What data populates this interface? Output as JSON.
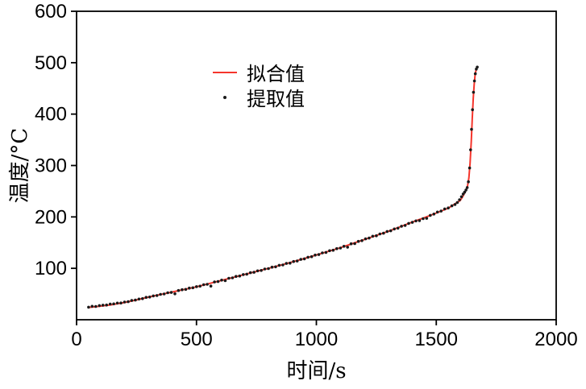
{
  "figure": {
    "background": "#ffffff",
    "axis_color": "#000000"
  },
  "chart_data": {
    "type": "line+scatter",
    "xlabel": "时间/s",
    "ylabel": "温度/°C",
    "xlim": [
      0,
      2000
    ],
    "ylim": [
      0,
      600
    ],
    "x_ticks": [
      0,
      500,
      1000,
      1500,
      2000
    ],
    "y_ticks": [
      100,
      200,
      300,
      400,
      500,
      600
    ],
    "grid": false,
    "legend": {
      "position": "upper-center",
      "entries": [
        {
          "name": "拟合值",
          "type": "line",
          "color": "#f5352c"
        },
        {
          "name": "提取值",
          "type": "scatter",
          "color": "#1a1a1a"
        }
      ]
    },
    "series": [
      {
        "name": "拟合值",
        "type": "line",
        "color": "#f5352c",
        "points": [
          [
            50,
            24
          ],
          [
            100,
            26.5
          ],
          [
            150,
            29.5
          ],
          [
            200,
            33.5
          ],
          [
            250,
            38.5
          ],
          [
            300,
            44
          ],
          [
            350,
            49
          ],
          [
            400,
            54
          ],
          [
            450,
            59
          ],
          [
            500,
            64
          ],
          [
            550,
            70
          ],
          [
            600,
            76
          ],
          [
            650,
            82
          ],
          [
            700,
            88
          ],
          [
            750,
            94
          ],
          [
            800,
            100
          ],
          [
            850,
            106
          ],
          [
            900,
            112.5
          ],
          [
            950,
            119
          ],
          [
            1000,
            126
          ],
          [
            1050,
            133
          ],
          [
            1100,
            140
          ],
          [
            1150,
            148
          ],
          [
            1200,
            156
          ],
          [
            1250,
            164
          ],
          [
            1300,
            172
          ],
          [
            1350,
            181
          ],
          [
            1400,
            190
          ],
          [
            1450,
            198.5
          ],
          [
            1500,
            207.5
          ],
          [
            1550,
            217
          ],
          [
            1600,
            232
          ],
          [
            1612,
            241
          ],
          [
            1622,
            250
          ],
          [
            1630,
            259
          ],
          [
            1636,
            276
          ],
          [
            1641,
            305
          ],
          [
            1646,
            348
          ],
          [
            1650,
            392
          ],
          [
            1654,
            430
          ],
          [
            1658,
            458
          ],
          [
            1662,
            476
          ],
          [
            1666,
            486
          ],
          [
            1670,
            492
          ]
        ]
      },
      {
        "name": "提取值",
        "type": "scatter",
        "color": "#1a1a1a",
        "points": [
          [
            50,
            24.5
          ],
          [
            65,
            26.2
          ],
          [
            80,
            25.8
          ],
          [
            95,
            27.5
          ],
          [
            110,
            28.3
          ],
          [
            125,
            28.7
          ],
          [
            140,
            30.5
          ],
          [
            155,
            30.8
          ],
          [
            170,
            32.4
          ],
          [
            185,
            32.6
          ],
          [
            200,
            34.5
          ],
          [
            215,
            35.1
          ],
          [
            230,
            37.4
          ],
          [
            245,
            38.2
          ],
          [
            260,
            40.3
          ],
          [
            275,
            41.1
          ],
          [
            290,
            43.5
          ],
          [
            305,
            44.2
          ],
          [
            320,
            46.3
          ],
          [
            335,
            47.1
          ],
          [
            350,
            49.4
          ],
          [
            365,
            50.2
          ],
          [
            380,
            52.5
          ],
          [
            395,
            53.1
          ],
          [
            410,
            50.5
          ],
          [
            425,
            56.9
          ],
          [
            440,
            58.4
          ],
          [
            455,
            59.1
          ],
          [
            470,
            61.5
          ],
          [
            485,
            62.2
          ],
          [
            500,
            64.4
          ],
          [
            515,
            65.3
          ],
          [
            530,
            68.1
          ],
          [
            545,
            69.0
          ],
          [
            560,
            65.5
          ],
          [
            575,
            73.4
          ],
          [
            590,
            74.3
          ],
          [
            605,
            77.1
          ],
          [
            620,
            76.0
          ],
          [
            635,
            80.7
          ],
          [
            650,
            81.4
          ],
          [
            665,
            84.3
          ],
          [
            680,
            85.0
          ],
          [
            695,
            87.9
          ],
          [
            710,
            88.6
          ],
          [
            725,
            91.5
          ],
          [
            740,
            92.2
          ],
          [
            755,
            95.1
          ],
          [
            770,
            95.8
          ],
          [
            785,
            98.7
          ],
          [
            800,
            99.4
          ],
          [
            815,
            102.3
          ],
          [
            830,
            103.0
          ],
          [
            845,
            105.9
          ],
          [
            860,
            106.6
          ],
          [
            875,
            109.5
          ],
          [
            890,
            110.2
          ],
          [
            905,
            113.2
          ],
          [
            920,
            114.2
          ],
          [
            935,
            117.4
          ],
          [
            950,
            118.4
          ],
          [
            965,
            121.6
          ],
          [
            980,
            122.6
          ],
          [
            995,
            125.8
          ],
          [
            1010,
            126.8
          ],
          [
            1025,
            130.0
          ],
          [
            1040,
            131.0
          ],
          [
            1055,
            134.2
          ],
          [
            1070,
            135.2
          ],
          [
            1085,
            138.4
          ],
          [
            1100,
            139.4
          ],
          [
            1115,
            142.9
          ],
          [
            1130,
            141.2
          ],
          [
            1145,
            147.7
          ],
          [
            1160,
            148.0
          ],
          [
            1175,
            152.5
          ],
          [
            1190,
            153.8
          ],
          [
            1205,
            157.3
          ],
          [
            1220,
            158.8
          ],
          [
            1235,
            162.5
          ],
          [
            1250,
            163.4
          ],
          [
            1265,
            166.9
          ],
          [
            1280,
            168.2
          ],
          [
            1295,
            171.7
          ],
          [
            1310,
            173.0
          ],
          [
            1325,
            176.5
          ],
          [
            1340,
            178.1
          ],
          [
            1355,
            181.9
          ],
          [
            1370,
            183.5
          ],
          [
            1385,
            187.3
          ],
          [
            1400,
            189.4
          ],
          [
            1415,
            192.2
          ],
          [
            1430,
            192.8
          ],
          [
            1445,
            196.6
          ],
          [
            1460,
            197.2
          ],
          [
            1475,
            203.0
          ],
          [
            1490,
            205.6
          ],
          [
            1505,
            209.5
          ],
          [
            1520,
            211.4
          ],
          [
            1535,
            215.5
          ],
          [
            1550,
            217.4
          ],
          [
            1565,
            221.5
          ],
          [
            1578,
            224.2
          ],
          [
            1588,
            228.1
          ],
          [
            1597,
            233.4
          ],
          [
            1605,
            239.2
          ],
          [
            1612,
            244.5
          ],
          [
            1618,
            248.2
          ],
          [
            1624,
            252.4
          ],
          [
            1629,
            257.1
          ],
          [
            1634,
            268.4
          ],
          [
            1639,
            295.2
          ],
          [
            1643,
            330.5
          ],
          [
            1647,
            370.4
          ],
          [
            1651,
            408.5
          ],
          [
            1655,
            442.4
          ],
          [
            1659,
            464.5
          ],
          [
            1663,
            478.4
          ],
          [
            1667,
            487.5
          ],
          [
            1671,
            491.4
          ]
        ]
      }
    ]
  }
}
